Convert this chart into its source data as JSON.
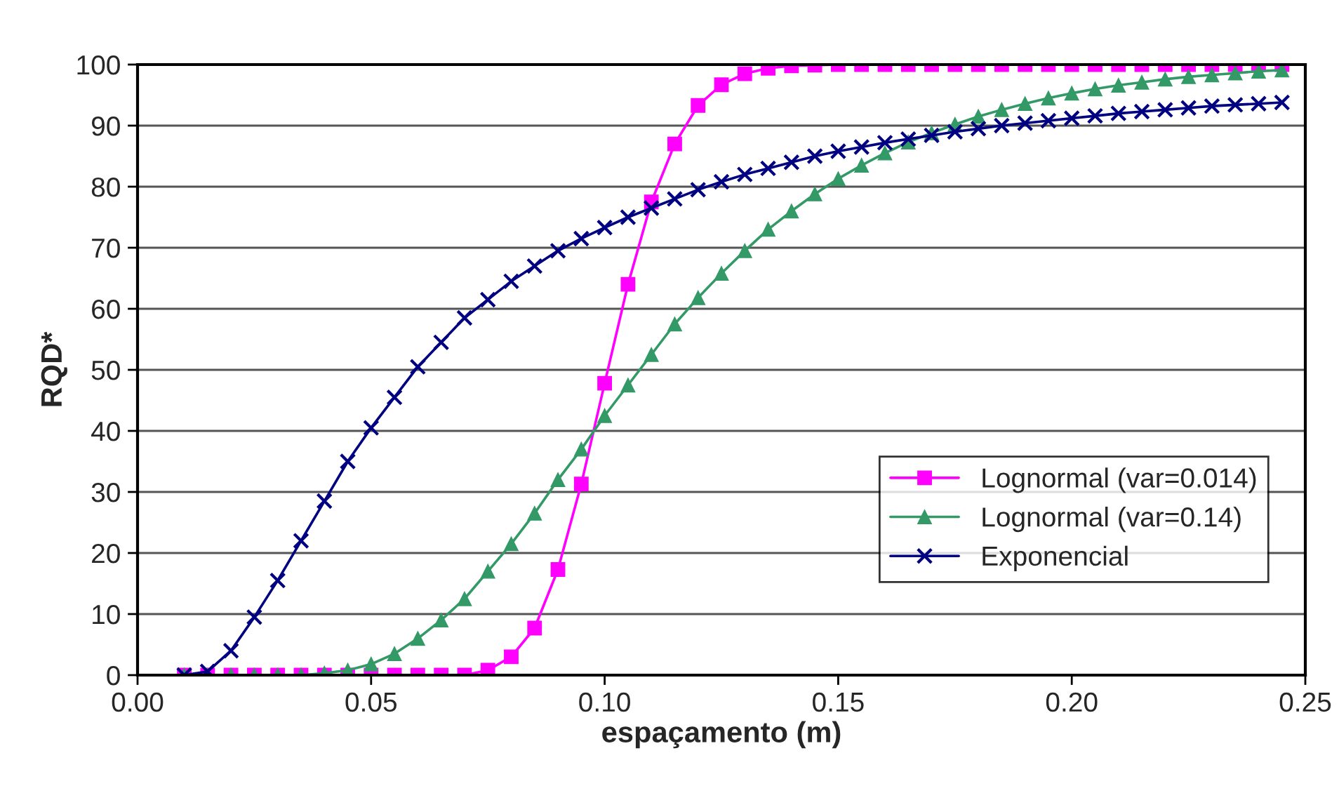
{
  "chart_data": {
    "type": "line",
    "xlabel": "espaçamento (m)",
    "ylabel": "RQD*",
    "x": [
      0.01,
      0.015,
      0.02,
      0.025,
      0.03,
      0.035,
      0.04,
      0.045,
      0.05,
      0.055,
      0.06,
      0.065,
      0.07,
      0.075,
      0.08,
      0.085,
      0.09,
      0.095,
      0.1,
      0.105,
      0.11,
      0.115,
      0.12,
      0.125,
      0.13,
      0.135,
      0.14,
      0.145,
      0.15,
      0.155,
      0.16,
      0.165,
      0.17,
      0.175,
      0.18,
      0.185,
      0.19,
      0.195,
      0.2,
      0.205,
      0.21,
      0.215,
      0.22,
      0.225,
      0.23,
      0.235,
      0.24,
      0.245
    ],
    "series": [
      {
        "name": "Lognormal (var=0.014)",
        "color": "#ff00ff",
        "marker": "square",
        "values": [
          0,
          0,
          0,
          0,
          0,
          0,
          0,
          0,
          0,
          0,
          0,
          0,
          0,
          0.8,
          3,
          7.7,
          17.3,
          31.3,
          47.8,
          64,
          77.5,
          87,
          93.3,
          96.7,
          98.5,
          99.4,
          99.8,
          99.9,
          100,
          100,
          100,
          100,
          100,
          100,
          100,
          100,
          100,
          100,
          100,
          100,
          100,
          100,
          100,
          100,
          100,
          100,
          100,
          100
        ]
      },
      {
        "name": "Lognormal (var=0.14)",
        "color": "#339966",
        "marker": "triangle",
        "values": [
          0,
          0,
          0,
          0,
          0,
          0,
          0.3,
          0.8,
          1.8,
          3.5,
          6,
          9,
          12.5,
          17,
          21.5,
          26.5,
          32,
          37,
          42.5,
          47.5,
          52.5,
          57.5,
          61.8,
          65.8,
          69.5,
          73,
          76,
          78.8,
          81.3,
          83.5,
          85.5,
          87.3,
          88.8,
          90.2,
          91.5,
          92.6,
          93.6,
          94.5,
          95.3,
          96,
          96.6,
          97.1,
          97.6,
          98,
          98.3,
          98.6,
          98.9,
          99.1
        ]
      },
      {
        "name": "Exponencial",
        "color": "#000080",
        "marker": "cross",
        "values": [
          0,
          0.6,
          4,
          9.5,
          15.5,
          22,
          28.5,
          35,
          40.5,
          45.5,
          50.5,
          54.5,
          58.5,
          61.5,
          64.5,
          67,
          69.5,
          71.5,
          73.3,
          75,
          76.5,
          78,
          79.5,
          80.8,
          82,
          83,
          84,
          85,
          85.8,
          86.5,
          87.2,
          87.8,
          88.4,
          89,
          89.5,
          90,
          90.4,
          90.8,
          91.2,
          91.6,
          92,
          92.3,
          92.6,
          92.9,
          93.2,
          93.4,
          93.6,
          93.8
        ]
      }
    ],
    "xlim": [
      0,
      0.25
    ],
    "xticks": [
      {
        "value": 0,
        "label": "0.00"
      },
      {
        "value": 0.05,
        "label": "0.05"
      },
      {
        "value": 0.1,
        "label": "0.10"
      },
      {
        "value": 0.15,
        "label": "0.15"
      },
      {
        "value": 0.2,
        "label": "0.20"
      },
      {
        "value": 0.25,
        "label": "0.25"
      }
    ],
    "ylim": [
      0,
      100
    ],
    "yticks": [
      0,
      10,
      20,
      30,
      40,
      50,
      60,
      70,
      80,
      90,
      100
    ],
    "grid": "y",
    "legend": "lower right",
    "line_style": "solid"
  }
}
